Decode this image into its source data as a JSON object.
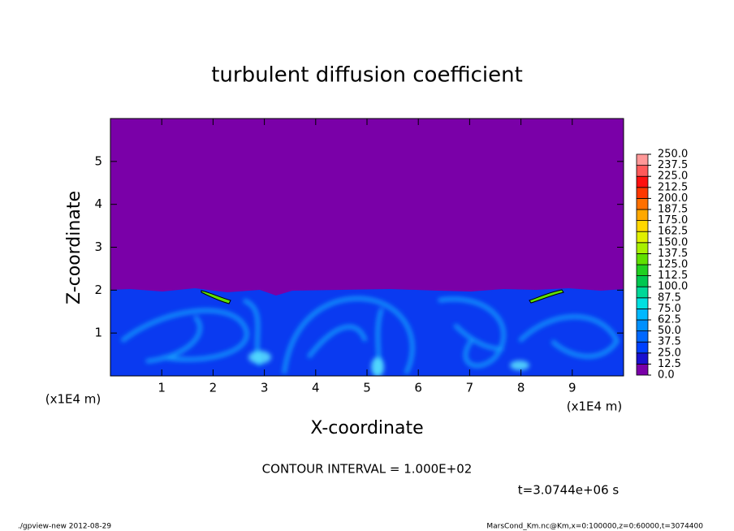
{
  "chart_data": {
    "type": "contour",
    "title": "turbulent diffusion coefficient",
    "x_label": "X-coordinate",
    "y_label": "Z-coordinate",
    "x_scale_labels": [
      "(x1E4 m)",
      "(x1E4 m)"
    ],
    "xlim": [
      0,
      10
    ],
    "ylim": [
      0,
      6
    ],
    "xticks": [
      1,
      2,
      3,
      4,
      5,
      6,
      7,
      8,
      9
    ],
    "yticks": [
      1,
      2,
      3,
      4,
      5
    ],
    "annotation": "CONTOUR INTERVAL = 1.000E+02",
    "time_label": "t=3.0744e+06 s",
    "footer_left": "./gpview-new  2012-08-29",
    "footer_right": "MarsCond_Km.nc@Km,x=0:100000,z=0:60000,t=3074400",
    "colorbar": {
      "levels": [
        {
          "value": 0,
          "label": "0.0"
        },
        {
          "value": 12.5,
          "label": "12.5"
        },
        {
          "value": 25,
          "label": "25.0"
        },
        {
          "value": 37.5,
          "label": "37.5"
        },
        {
          "value": 50,
          "label": "50.0"
        },
        {
          "value": 62.5,
          "label": "62.5"
        },
        {
          "value": 75,
          "label": "75.0"
        },
        {
          "value": 87.5,
          "label": "87.5"
        },
        {
          "value": 100,
          "label": "100.0"
        },
        {
          "value": 112.5,
          "label": "112.5"
        },
        {
          "value": 125,
          "label": "125.0"
        },
        {
          "value": 137.5,
          "label": "137.5"
        },
        {
          "value": 150,
          "label": "150.0"
        },
        {
          "value": 162.5,
          "label": "162.5"
        },
        {
          "value": 175,
          "label": "175.0"
        },
        {
          "value": 187.5,
          "label": "187.5"
        },
        {
          "value": 200,
          "label": "200.0"
        },
        {
          "value": 212.5,
          "label": "212.5"
        },
        {
          "value": 225,
          "label": "225.0"
        },
        {
          "value": 237.5,
          "label": "237.5"
        },
        {
          "value": 250,
          "label": "250.0"
        }
      ],
      "colors": [
        "#7a00a8",
        "#1a10d0",
        "#0040ff",
        "#0068ff",
        "#0090ff",
        "#00b8ff",
        "#00e0e0",
        "#00d898",
        "#00c850",
        "#20d020",
        "#60e000",
        "#a8f000",
        "#e0f000",
        "#ffd700",
        "#ffa800",
        "#ff7000",
        "#ff3800",
        "#ff1010",
        "#ff5a5a",
        "#ff9898"
      ]
    }
  }
}
